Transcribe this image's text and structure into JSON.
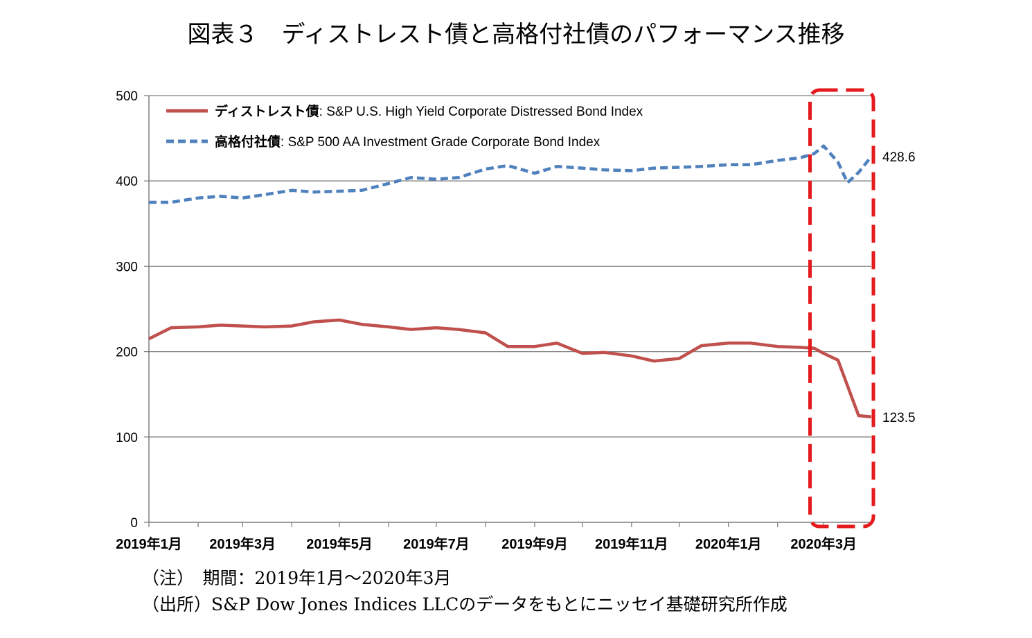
{
  "title": "図表３　ディストレスト債と高格付社債のパフォーマンス推移",
  "notes": {
    "note1": "（注）　期間：2019年1月～2020年3月",
    "note2": "（出所）S&P Dow Jones Indices LLCのデータをもとにニッセイ基礎研究所作成"
  },
  "colors": {
    "distressed": "#C0504D",
    "investment_grade": "#4F81BD",
    "highlight": "#E41A1C",
    "grid": "#7f7f7f"
  },
  "chart_data": {
    "type": "line",
    "title": "",
    "xlabel": "",
    "ylabel": "",
    "ylim": [
      0,
      500
    ],
    "yticks": [
      0,
      100,
      200,
      300,
      400,
      500
    ],
    "x_tick_labels": [
      "2019年1月",
      "2019年3月",
      "2019年5月",
      "2019年7月",
      "2019年9月",
      "2019年11月",
      "2020年1月",
      "2020年3月"
    ],
    "x": [
      "2019-01-01",
      "2019-01-15",
      "2019-02-01",
      "2019-02-15",
      "2019-03-01",
      "2019-03-15",
      "2019-04-01",
      "2019-04-15",
      "2019-05-01",
      "2019-05-15",
      "2019-06-01",
      "2019-06-15",
      "2019-07-01",
      "2019-07-15",
      "2019-08-01",
      "2019-08-15",
      "2019-09-01",
      "2019-09-15",
      "2019-10-01",
      "2019-10-15",
      "2019-11-01",
      "2019-11-15",
      "2019-12-01",
      "2019-12-15",
      "2020-01-01",
      "2020-01-15",
      "2020-02-01",
      "2020-02-15",
      "2020-02-24",
      "2020-03-01",
      "2020-03-10",
      "2020-03-16",
      "2020-03-23",
      "2020-03-31"
    ],
    "grid": true,
    "legend_position": "top-left",
    "series": [
      {
        "name": "ディストレスト債: S&P U.S. High Yield Corporate Distressed Bond Index",
        "legend_label": "ディストレスト債",
        "legend_desc": ": S&P U.S. High Yield Corporate Distressed Bond Index",
        "color": "#C0504D",
        "style": "solid",
        "end_label": "123.5",
        "values": [
          215,
          228,
          229,
          231,
          230,
          229,
          230,
          235,
          237,
          232,
          229,
          226,
          228,
          226,
          222,
          206,
          206,
          210,
          198,
          199,
          195,
          189,
          192,
          207,
          210,
          210,
          206,
          205,
          204,
          198,
          190,
          160,
          125,
          123.5
        ]
      },
      {
        "name": "高格付社債: S&P 500 AA Investment Grade Corporate Bond Index",
        "legend_label": "高格付社債",
        "legend_desc": ": S&P 500 AA Investment Grade Corporate Bond Index",
        "color": "#4F81BD",
        "style": "dashed",
        "end_label": "428.6",
        "values": [
          375,
          375,
          380,
          382,
          380,
          384,
          389,
          387,
          388,
          389,
          397,
          404,
          402,
          404,
          414,
          418,
          409,
          417,
          415,
          413,
          412,
          415,
          416,
          417,
          419,
          419,
          424,
          427,
          432,
          441,
          422,
          398,
          410,
          428.6
        ]
      }
    ],
    "highlight": {
      "from": "2020-02-24",
      "to": "2020-03-31",
      "style": "red dashed rounded box"
    }
  }
}
